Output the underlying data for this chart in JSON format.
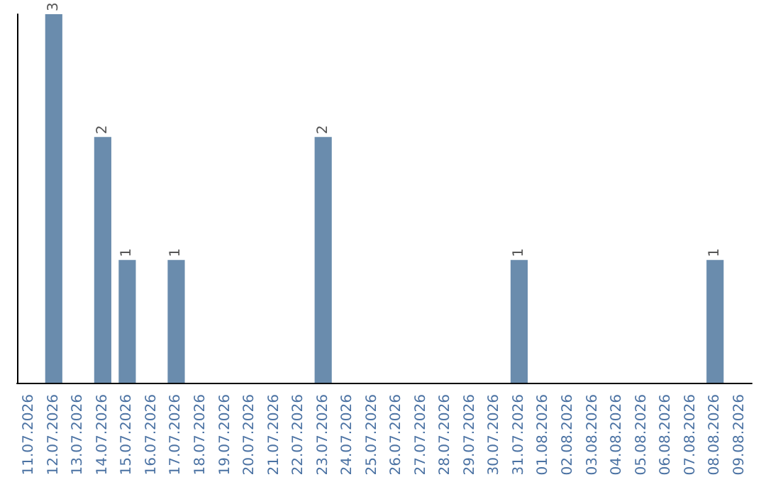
{
  "chart_data": {
    "type": "bar",
    "categories": [
      "11.07.2026",
      "12.07.2026",
      "13.07.2026",
      "14.07.2026",
      "15.07.2026",
      "16.07.2026",
      "17.07.2026",
      "18.07.2026",
      "19.07.2026",
      "20.07.2026",
      "21.07.2026",
      "22.07.2026",
      "23.07.2026",
      "24.07.2026",
      "25.07.2026",
      "26.07.2026",
      "27.07.2026",
      "28.07.2026",
      "29.07.2026",
      "30.07.2026",
      "31.07.2026",
      "01.08.2026",
      "02.08.2026",
      "03.08.2026",
      "04.08.2026",
      "05.08.2026",
      "06.08.2026",
      "07.08.2026",
      "08.08.2026",
      "09.08.2026"
    ],
    "values": [
      null,
      3,
      null,
      2,
      1,
      null,
      1,
      null,
      null,
      null,
      null,
      null,
      2,
      null,
      null,
      null,
      null,
      null,
      null,
      null,
      1,
      null,
      null,
      null,
      null,
      null,
      null,
      null,
      1,
      null
    ],
    "color": "#6a8cad",
    "data_labels": true,
    "tick_labels": "x"
  }
}
